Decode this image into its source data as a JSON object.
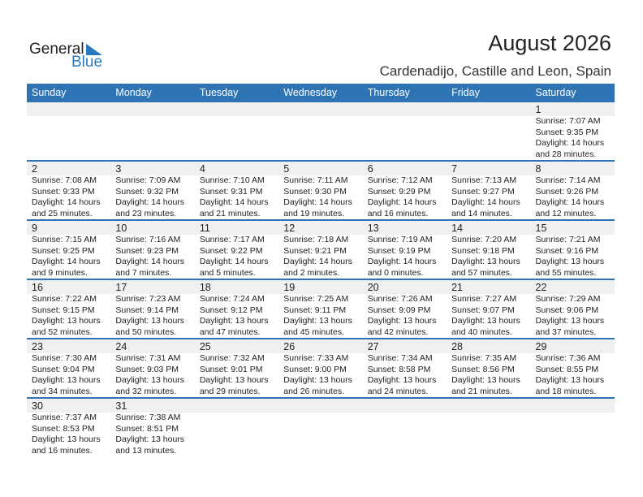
{
  "logo": {
    "general": "General",
    "blue": "Blue"
  },
  "title": "August 2026",
  "location": "Cardenadijo, Castille and Leon, Spain",
  "weekdays": [
    "Sunday",
    "Monday",
    "Tuesday",
    "Wednesday",
    "Thursday",
    "Friday",
    "Saturday"
  ],
  "weeks": [
    [
      null,
      null,
      null,
      null,
      null,
      null,
      {
        "day": "1",
        "sunrise": "Sunrise: 7:07 AM",
        "sunset": "Sunset: 9:35 PM",
        "daylight": "Daylight: 14 hours",
        "minutes": "and 28 minutes."
      }
    ],
    [
      {
        "day": "2",
        "sunrise": "Sunrise: 7:08 AM",
        "sunset": "Sunset: 9:33 PM",
        "daylight": "Daylight: 14 hours",
        "minutes": "and 25 minutes."
      },
      {
        "day": "3",
        "sunrise": "Sunrise: 7:09 AM",
        "sunset": "Sunset: 9:32 PM",
        "daylight": "Daylight: 14 hours",
        "minutes": "and 23 minutes."
      },
      {
        "day": "4",
        "sunrise": "Sunrise: 7:10 AM",
        "sunset": "Sunset: 9:31 PM",
        "daylight": "Daylight: 14 hours",
        "minutes": "and 21 minutes."
      },
      {
        "day": "5",
        "sunrise": "Sunrise: 7:11 AM",
        "sunset": "Sunset: 9:30 PM",
        "daylight": "Daylight: 14 hours",
        "minutes": "and 19 minutes."
      },
      {
        "day": "6",
        "sunrise": "Sunrise: 7:12 AM",
        "sunset": "Sunset: 9:29 PM",
        "daylight": "Daylight: 14 hours",
        "minutes": "and 16 minutes."
      },
      {
        "day": "7",
        "sunrise": "Sunrise: 7:13 AM",
        "sunset": "Sunset: 9:27 PM",
        "daylight": "Daylight: 14 hours",
        "minutes": "and 14 minutes."
      },
      {
        "day": "8",
        "sunrise": "Sunrise: 7:14 AM",
        "sunset": "Sunset: 9:26 PM",
        "daylight": "Daylight: 14 hours",
        "minutes": "and 12 minutes."
      }
    ],
    [
      {
        "day": "9",
        "sunrise": "Sunrise: 7:15 AM",
        "sunset": "Sunset: 9:25 PM",
        "daylight": "Daylight: 14 hours",
        "minutes": "and 9 minutes."
      },
      {
        "day": "10",
        "sunrise": "Sunrise: 7:16 AM",
        "sunset": "Sunset: 9:23 PM",
        "daylight": "Daylight: 14 hours",
        "minutes": "and 7 minutes."
      },
      {
        "day": "11",
        "sunrise": "Sunrise: 7:17 AM",
        "sunset": "Sunset: 9:22 PM",
        "daylight": "Daylight: 14 hours",
        "minutes": "and 5 minutes."
      },
      {
        "day": "12",
        "sunrise": "Sunrise: 7:18 AM",
        "sunset": "Sunset: 9:21 PM",
        "daylight": "Daylight: 14 hours",
        "minutes": "and 2 minutes."
      },
      {
        "day": "13",
        "sunrise": "Sunrise: 7:19 AM",
        "sunset": "Sunset: 9:19 PM",
        "daylight": "Daylight: 14 hours",
        "minutes": "and 0 minutes."
      },
      {
        "day": "14",
        "sunrise": "Sunrise: 7:20 AM",
        "sunset": "Sunset: 9:18 PM",
        "daylight": "Daylight: 13 hours",
        "minutes": "and 57 minutes."
      },
      {
        "day": "15",
        "sunrise": "Sunrise: 7:21 AM",
        "sunset": "Sunset: 9:16 PM",
        "daylight": "Daylight: 13 hours",
        "minutes": "and 55 minutes."
      }
    ],
    [
      {
        "day": "16",
        "sunrise": "Sunrise: 7:22 AM",
        "sunset": "Sunset: 9:15 PM",
        "daylight": "Daylight: 13 hours",
        "minutes": "and 52 minutes."
      },
      {
        "day": "17",
        "sunrise": "Sunrise: 7:23 AM",
        "sunset": "Sunset: 9:14 PM",
        "daylight": "Daylight: 13 hours",
        "minutes": "and 50 minutes."
      },
      {
        "day": "18",
        "sunrise": "Sunrise: 7:24 AM",
        "sunset": "Sunset: 9:12 PM",
        "daylight": "Daylight: 13 hours",
        "minutes": "and 47 minutes."
      },
      {
        "day": "19",
        "sunrise": "Sunrise: 7:25 AM",
        "sunset": "Sunset: 9:11 PM",
        "daylight": "Daylight: 13 hours",
        "minutes": "and 45 minutes."
      },
      {
        "day": "20",
        "sunrise": "Sunrise: 7:26 AM",
        "sunset": "Sunset: 9:09 PM",
        "daylight": "Daylight: 13 hours",
        "minutes": "and 42 minutes."
      },
      {
        "day": "21",
        "sunrise": "Sunrise: 7:27 AM",
        "sunset": "Sunset: 9:07 PM",
        "daylight": "Daylight: 13 hours",
        "minutes": "and 40 minutes."
      },
      {
        "day": "22",
        "sunrise": "Sunrise: 7:29 AM",
        "sunset": "Sunset: 9:06 PM",
        "daylight": "Daylight: 13 hours",
        "minutes": "and 37 minutes."
      }
    ],
    [
      {
        "day": "23",
        "sunrise": "Sunrise: 7:30 AM",
        "sunset": "Sunset: 9:04 PM",
        "daylight": "Daylight: 13 hours",
        "minutes": "and 34 minutes."
      },
      {
        "day": "24",
        "sunrise": "Sunrise: 7:31 AM",
        "sunset": "Sunset: 9:03 PM",
        "daylight": "Daylight: 13 hours",
        "minutes": "and 32 minutes."
      },
      {
        "day": "25",
        "sunrise": "Sunrise: 7:32 AM",
        "sunset": "Sunset: 9:01 PM",
        "daylight": "Daylight: 13 hours",
        "minutes": "and 29 minutes."
      },
      {
        "day": "26",
        "sunrise": "Sunrise: 7:33 AM",
        "sunset": "Sunset: 9:00 PM",
        "daylight": "Daylight: 13 hours",
        "minutes": "and 26 minutes."
      },
      {
        "day": "27",
        "sunrise": "Sunrise: 7:34 AM",
        "sunset": "Sunset: 8:58 PM",
        "daylight": "Daylight: 13 hours",
        "minutes": "and 24 minutes."
      },
      {
        "day": "28",
        "sunrise": "Sunrise: 7:35 AM",
        "sunset": "Sunset: 8:56 PM",
        "daylight": "Daylight: 13 hours",
        "minutes": "and 21 minutes."
      },
      {
        "day": "29",
        "sunrise": "Sunrise: 7:36 AM",
        "sunset": "Sunset: 8:55 PM",
        "daylight": "Daylight: 13 hours",
        "minutes": "and 18 minutes."
      }
    ],
    [
      {
        "day": "30",
        "sunrise": "Sunrise: 7:37 AM",
        "sunset": "Sunset: 8:53 PM",
        "daylight": "Daylight: 13 hours",
        "minutes": "and 16 minutes."
      },
      {
        "day": "31",
        "sunrise": "Sunrise: 7:38 AM",
        "sunset": "Sunset: 8:51 PM",
        "daylight": "Daylight: 13 hours",
        "minutes": "and 13 minutes."
      },
      null,
      null,
      null,
      null,
      null
    ]
  ]
}
